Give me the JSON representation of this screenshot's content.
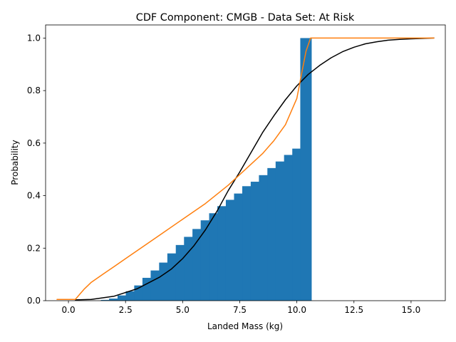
{
  "chart_data": {
    "type": "bar",
    "title": "CDF Component: CMGB - Data Set: At Risk",
    "xlabel": "Landed Mass (kg)",
    "ylabel": "Probability",
    "xlim": [
      -1.0,
      16.5
    ],
    "ylim": [
      0,
      1.05
    ],
    "xticks": [
      0.0,
      2.5,
      5.0,
      7.5,
      10.0,
      12.5,
      15.0
    ],
    "xtick_labels": [
      "0.0",
      "2.5",
      "5.0",
      "7.5",
      "10.0",
      "12.5",
      "15.0"
    ],
    "yticks": [
      0.0,
      0.2,
      0.4,
      0.6,
      0.8,
      1.0
    ],
    "ytick_labels": [
      "0.0",
      "0.2",
      "0.4",
      "0.6",
      "0.8",
      "1.0"
    ],
    "grid": false,
    "bar_width": 0.5,
    "bars": {
      "color": "#1f77b4",
      "x": [
        1.3,
        1.67,
        2.03,
        2.4,
        2.76,
        3.13,
        3.49,
        3.85,
        4.22,
        4.58,
        4.95,
        5.31,
        5.68,
        6.04,
        6.41,
        6.77,
        7.14,
        7.5,
        7.86,
        8.23,
        8.59,
        8.96,
        9.32,
        9.69,
        10.05
      ],
      "values": [
        0.0,
        0.003,
        0.008,
        0.02,
        0.036,
        0.058,
        0.087,
        0.115,
        0.145,
        0.18,
        0.212,
        0.243,
        0.273,
        0.306,
        0.333,
        0.36,
        0.384,
        0.408,
        0.436,
        0.453,
        0.478,
        0.505,
        0.53,
        0.555,
        0.579
      ]
    },
    "final_bar": {
      "x": 10.4,
      "value": 1.0
    },
    "series": [
      {
        "color": "#000000",
        "x": [
          0.3,
          1.0,
          2.0,
          3.0,
          4.0,
          4.5,
          5.0,
          5.5,
          6.0,
          6.5,
          7.0,
          7.5,
          8.0,
          8.5,
          9.0,
          9.5,
          10.0,
          10.5,
          11.0,
          11.5,
          12.0,
          12.5,
          13.0,
          13.5,
          14.0,
          14.5,
          15.0,
          16.0
        ],
        "values": [
          0.003,
          0.005,
          0.017,
          0.045,
          0.09,
          0.12,
          0.16,
          0.21,
          0.27,
          0.34,
          0.42,
          0.49,
          0.565,
          0.64,
          0.705,
          0.765,
          0.818,
          0.862,
          0.896,
          0.925,
          0.948,
          0.965,
          0.978,
          0.986,
          0.992,
          0.995,
          0.997,
          1.0
        ]
      },
      {
        "color": "#ff7f0e",
        "x": [
          -0.5,
          0.3,
          0.5,
          0.7,
          1.0,
          1.5,
          2.0,
          2.5,
          3.0,
          4.0,
          5.0,
          6.0,
          7.0,
          8.0,
          8.5,
          9.0,
          9.5,
          10.0,
          10.2,
          10.4,
          10.6,
          11.0,
          16.0
        ],
        "values": [
          0.005,
          0.005,
          0.025,
          0.045,
          0.07,
          0.1,
          0.13,
          0.16,
          0.19,
          0.25,
          0.31,
          0.37,
          0.44,
          0.52,
          0.56,
          0.61,
          0.67,
          0.77,
          0.86,
          0.95,
          1.0,
          1.0,
          1.0
        ]
      }
    ]
  }
}
